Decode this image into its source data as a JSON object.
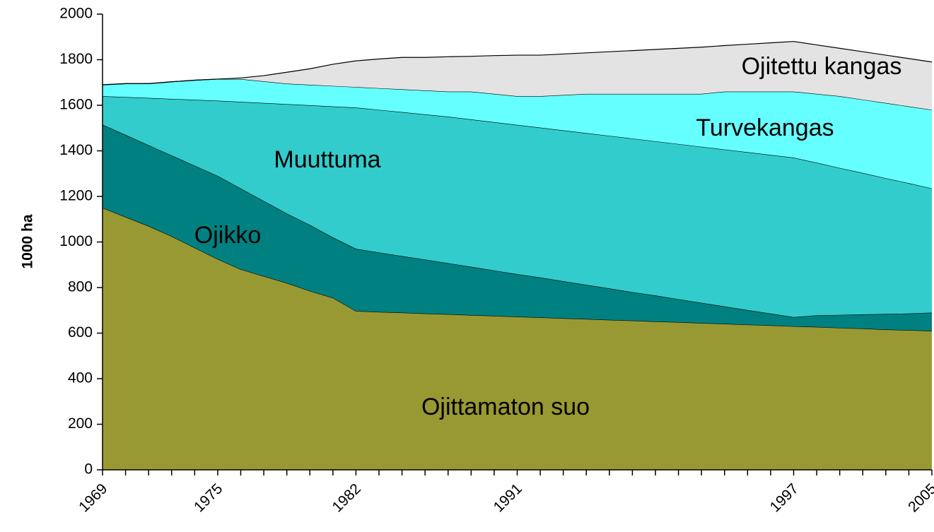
{
  "chart_data": {
    "type": "stacked_area",
    "y_label": "1000 ha",
    "categories": [
      "1969",
      null,
      null,
      null,
      null,
      "1975",
      null,
      null,
      null,
      null,
      null,
      "1982",
      null,
      null,
      null,
      null,
      null,
      null,
      "1991",
      null,
      null,
      null,
      null,
      null,
      null,
      null,
      null,
      null,
      null,
      null,
      "1997",
      null,
      null,
      null,
      null,
      null,
      "2005"
    ],
    "series": [
      {
        "name": "Ojittamaton suo",
        "color": "#999933",
        "values": [
          1150,
          1110,
          1070,
          1025,
          975,
          925,
          880,
          850,
          820,
          785,
          755,
          697,
          693,
          690,
          686,
          683,
          679,
          676,
          672,
          669,
          665,
          662,
          658,
          655,
          651,
          648,
          644,
          641,
          637,
          634,
          630,
          627,
          623,
          620,
          616,
          613,
          610
        ]
      },
      {
        "name": "Ojikko",
        "color": "#008080",
        "values": [
          365,
          360,
          355,
          355,
          360,
          365,
          355,
          330,
          305,
          290,
          265,
          273,
          261,
          248,
          237,
          224,
          212,
          199,
          187,
          175,
          163,
          150,
          138,
          125,
          114,
          101,
          89,
          76,
          64,
          52,
          40,
          51,
          57,
          62,
          68,
          73,
          80
        ]
      },
      {
        "name": "Muuttuma",
        "color": "#33cccc",
        "values": [
          125,
          166,
          207,
          248,
          289,
          330,
          380,
          430,
          480,
          525,
          575,
          620,
          626,
          632,
          637,
          643,
          647,
          651,
          655,
          658,
          662,
          666,
          670,
          674,
          677,
          681,
          685,
          689,
          693,
          696,
          700,
          670,
          645,
          621,
          596,
          572,
          545
        ]
      },
      {
        "name": "Turvekangas",
        "color": "#66ffff",
        "values": [
          50,
          59,
          63,
          75,
          86,
          95,
          100,
          95,
          90,
          90,
          90,
          90,
          95,
          100,
          105,
          110,
          122,
          124,
          126,
          138,
          155,
          172,
          184,
          196,
          208,
          220,
          232,
          254,
          266,
          278,
          290,
          302,
          315,
          322,
          330,
          337,
          345
        ]
      },
      {
        "name": "Ojitettu kangas",
        "color": "#e3e3e3",
        "values": [
          0,
          0,
          0,
          0,
          0,
          0,
          5,
          25,
          50,
          70,
          95,
          115,
          128,
          140,
          145,
          153,
          155,
          168,
          180,
          180,
          180,
          180,
          185,
          190,
          195,
          200,
          205,
          202,
          208,
          214,
          220,
          215,
          210,
          210,
          210,
          210,
          210
        ]
      }
    ],
    "ylim": [
      0,
      2000
    ],
    "yticks": [
      0,
      200,
      400,
      600,
      800,
      1000,
      1200,
      1400,
      1600,
      1800,
      2000
    ]
  }
}
